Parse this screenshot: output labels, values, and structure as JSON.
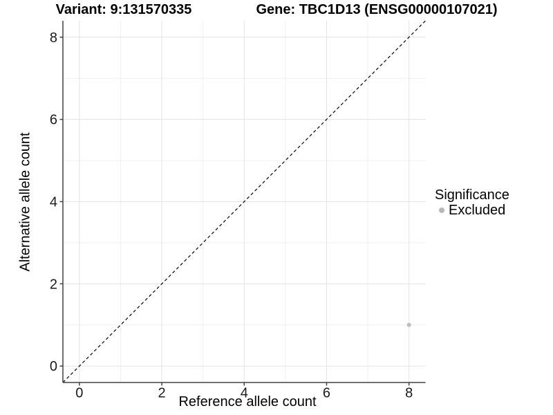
{
  "titles": {
    "variant": "Variant: 9:131570335",
    "gene": "Gene: TBC1D13 (ENSG00000107021)"
  },
  "axes": {
    "x_label": "Reference allele count",
    "y_label": "Alternative allele count"
  },
  "legend": {
    "title": "Significance",
    "items": [
      {
        "label": "Excluded",
        "color": "#b8b8b8"
      }
    ]
  },
  "chart_data": {
    "type": "scatter",
    "title_left": "Variant: 9:131570335",
    "title_right": "Gene: TBC1D13 (ENSG00000107021)",
    "xlabel": "Reference allele count",
    "ylabel": "Alternative allele count",
    "xlim": [
      -0.4,
      8.4
    ],
    "ylim": [
      -0.4,
      8.4
    ],
    "major_ticks": [
      0,
      2,
      4,
      6,
      8
    ],
    "minor_ticks": [
      1,
      3,
      5,
      7
    ],
    "grid": true,
    "legend_position": "right",
    "series": [
      {
        "name": "Excluded",
        "points": [
          {
            "x": 8,
            "y": 1
          }
        ],
        "color": "#bdbdbd"
      }
    ],
    "identity_line": {
      "slope": 1,
      "intercept": 0,
      "style": "dashed",
      "color": "#000000"
    },
    "colors": {
      "background": "#ffffff",
      "grid_major": "#e3e3e3",
      "grid_minor": "#f0f0f0",
      "axis_line": "#404040",
      "tick_mark": "#404040",
      "tick_label": "#1a1a1a",
      "point": "#bdbdbd",
      "identity": "#000000"
    }
  }
}
